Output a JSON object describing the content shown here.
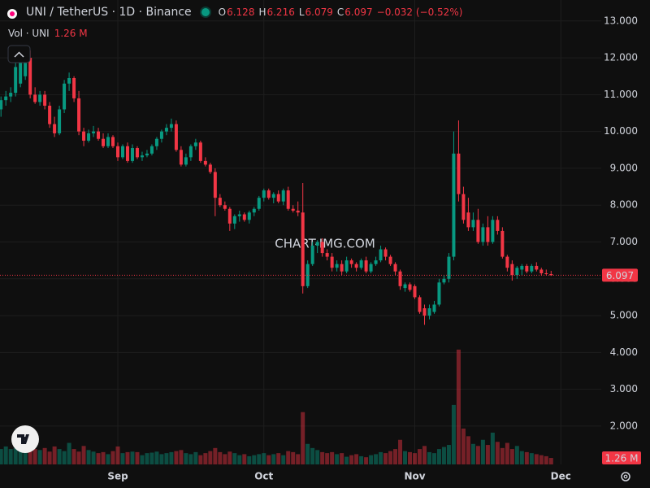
{
  "chart_data": {
    "type": "candlestick",
    "header": {
      "title": "UNI / TetherUS · 1D · Binance",
      "items": [
        {
          "key": "O",
          "value": "6.128"
        },
        {
          "key": "H",
          "value": "6.216"
        },
        {
          "key": "L",
          "value": "6.079"
        },
        {
          "key": "C",
          "value": "6.097"
        }
      ],
      "change": "−0.032 (−0.52%)"
    },
    "volume_legend": {
      "label": "Vol · UNI",
      "value": "1.26 M"
    },
    "watermark": "CHART-IMG.COM",
    "last_price_label": "6.097",
    "up_color": "#089981",
    "down_color": "#f23645",
    "xlim": [
      -0.2,
      123.3
    ],
    "xticks": [
      {
        "value": 24,
        "label": "Sep"
      },
      {
        "value": 54,
        "label": "Oct"
      },
      {
        "value": 85,
        "label": "Nov"
      },
      {
        "value": 115,
        "label": "Dec"
      }
    ],
    "ylim": [
      0.96,
      13.57
    ],
    "yticks": [
      {
        "value": 13,
        "label": "13.000"
      },
      {
        "value": 12,
        "label": "12.000"
      },
      {
        "value": 11,
        "label": "11.000"
      },
      {
        "value": 10,
        "label": "10.000"
      },
      {
        "value": 9,
        "label": "9.000"
      },
      {
        "value": 8,
        "label": "8.000"
      },
      {
        "value": 7,
        "label": "7.000"
      },
      {
        "value": 6,
        "label": "6.000"
      },
      {
        "value": 5,
        "label": "5.000"
      },
      {
        "value": 4,
        "label": "4.000"
      },
      {
        "value": 3,
        "label": "3.000"
      },
      {
        "value": 2,
        "label": "2.000"
      }
    ],
    "volume_ylim": [
      0,
      90.6
    ],
    "grid": true,
    "open": [
      10.6,
      10.85,
      10.95,
      11.05,
      11.3,
      11.5,
      12.0,
      11.0,
      10.8,
      11.0,
      10.7,
      10.2,
      9.95,
      10.6,
      11.3,
      11.45,
      10.9,
      10.0,
      9.75,
      9.95,
      10.0,
      9.8,
      9.6,
      9.85,
      9.6,
      9.3,
      9.6,
      9.2,
      9.55,
      9.3,
      9.35,
      9.4,
      9.6,
      9.8,
      10.0,
      10.1,
      10.2,
      9.5,
      9.1,
      9.3,
      9.6,
      9.7,
      9.2,
      9.1,
      8.9,
      8.2,
      8.0,
      7.9,
      7.5,
      7.7,
      7.75,
      7.6,
      7.8,
      7.9,
      8.2,
      8.4,
      8.2,
      8.3,
      8.1,
      8.4,
      7.9,
      7.85,
      7.8,
      5.8,
      6.4,
      6.9,
      7.0,
      6.7,
      6.6,
      6.3,
      6.4,
      6.2,
      6.5,
      6.4,
      6.3,
      6.5,
      6.2,
      6.4,
      6.5,
      6.8,
      6.6,
      6.4,
      6.2,
      5.75,
      5.85,
      5.8,
      5.5,
      5.2,
      5.0,
      5.1,
      5.3,
      5.9,
      6.0,
      6.6,
      9.4,
      8.3,
      7.8,
      7.4,
      7.6,
      7.0,
      7.4,
      7.0,
      7.6,
      7.3,
      6.6,
      6.4,
      6.1,
      6.25,
      6.35,
      6.2,
      6.35,
      6.25,
      6.15,
      6.128
    ],
    "high": [
      10.95,
      11.1,
      11.2,
      11.9,
      12.05,
      12.1,
      12.2,
      11.2,
      11.1,
      11.1,
      10.8,
      10.4,
      10.7,
      11.4,
      11.6,
      11.5,
      11.1,
      10.1,
      10.05,
      10.15,
      10.1,
      9.95,
      9.95,
      9.9,
      9.7,
      9.65,
      9.7,
      9.65,
      9.6,
      9.45,
      9.5,
      9.65,
      9.85,
      10.05,
      10.2,
      10.35,
      10.3,
      9.6,
      9.4,
      9.65,
      9.8,
      9.75,
      9.3,
      9.15,
      9.0,
      8.3,
      8.1,
      7.95,
      7.75,
      7.85,
      7.8,
      7.85,
      7.95,
      8.25,
      8.45,
      8.45,
      8.35,
      8.4,
      8.45,
      8.5,
      8.0,
      8.1,
      8.6,
      6.5,
      7.0,
      7.05,
      7.1,
      6.8,
      6.7,
      6.5,
      6.5,
      6.6,
      6.55,
      6.45,
      6.55,
      6.6,
      6.45,
      6.6,
      6.9,
      6.85,
      6.65,
      6.45,
      6.25,
      5.9,
      5.9,
      5.85,
      5.55,
      5.3,
      5.3,
      5.4,
      6.0,
      6.1,
      6.7,
      10.0,
      10.3,
      8.5,
      8.2,
      7.8,
      7.9,
      7.5,
      7.7,
      7.7,
      7.7,
      7.4,
      6.65,
      6.5,
      6.35,
      6.4,
      6.4,
      6.4,
      6.45,
      6.3,
      6.25,
      6.216
    ],
    "low": [
      10.4,
      10.7,
      10.8,
      10.95,
      11.2,
      11.4,
      10.9,
      10.75,
      10.7,
      10.6,
      10.1,
      9.85,
      9.9,
      10.5,
      11.1,
      10.8,
      9.9,
      9.6,
      9.7,
      9.85,
      9.75,
      9.55,
      9.55,
      9.55,
      9.2,
      9.25,
      9.15,
      9.15,
      9.25,
      9.2,
      9.3,
      9.35,
      9.5,
      9.7,
      9.9,
      10.0,
      9.45,
      9.05,
      9.05,
      9.2,
      9.5,
      9.15,
      9.05,
      8.85,
      7.7,
      7.95,
      7.85,
      7.3,
      7.35,
      7.55,
      7.55,
      7.5,
      7.7,
      7.85,
      8.1,
      8.15,
      8.05,
      8.05,
      8.0,
      7.85,
      7.8,
      7.7,
      5.6,
      5.75,
      6.35,
      6.7,
      6.6,
      6.5,
      6.2,
      6.2,
      6.1,
      6.15,
      6.3,
      6.2,
      6.25,
      6.15,
      6.15,
      6.35,
      6.45,
      6.5,
      6.35,
      6.1,
      5.7,
      5.65,
      5.65,
      5.45,
      5.05,
      4.75,
      4.9,
      5.05,
      5.25,
      5.85,
      5.9,
      6.5,
      8.1,
      7.5,
      7.3,
      7.3,
      6.95,
      6.9,
      6.9,
      6.95,
      7.2,
      6.55,
      6.2,
      5.95,
      6.0,
      6.1,
      6.15,
      6.15,
      6.2,
      6.1,
      6.1,
      6.079
    ],
    "close": [
      10.85,
      10.95,
      11.05,
      11.75,
      11.95,
      12.0,
      11.0,
      10.8,
      11.0,
      10.7,
      10.2,
      9.95,
      10.6,
      11.3,
      11.45,
      10.9,
      10.0,
      9.75,
      9.95,
      10.0,
      9.8,
      9.6,
      9.85,
      9.6,
      9.3,
      9.6,
      9.2,
      9.55,
      9.3,
      9.35,
      9.4,
      9.6,
      9.8,
      10.0,
      10.1,
      10.2,
      9.5,
      9.1,
      9.3,
      9.6,
      9.7,
      9.2,
      9.1,
      8.9,
      8.2,
      8.0,
      7.9,
      7.5,
      7.7,
      7.75,
      7.6,
      7.8,
      7.9,
      8.2,
      8.4,
      8.2,
      8.3,
      8.1,
      8.4,
      7.9,
      7.85,
      7.8,
      5.8,
      6.4,
      6.9,
      7.0,
      6.7,
      6.6,
      6.3,
      6.4,
      6.2,
      6.5,
      6.4,
      6.3,
      6.5,
      6.2,
      6.4,
      6.5,
      6.8,
      6.6,
      6.4,
      6.2,
      5.8,
      5.85,
      5.7,
      5.5,
      5.1,
      5.0,
      5.2,
      5.3,
      5.9,
      6.0,
      6.6,
      9.4,
      8.3,
      7.6,
      7.4,
      7.6,
      7.0,
      7.4,
      7.0,
      7.6,
      7.3,
      6.6,
      6.3,
      6.1,
      6.3,
      6.35,
      6.2,
      6.35,
      6.25,
      6.15,
      6.13,
      6.097
    ],
    "volume": [
      3,
      3.5,
      3,
      3.2,
      3.8,
      3.5,
      4,
      3,
      2.8,
      3.2,
      2.5,
      3.5,
      3,
      2.6,
      4.2,
      3,
      2.5,
      3.6,
      2.8,
      2.5,
      2.2,
      2.4,
      2,
      2.6,
      3.5,
      2.2,
      2.4,
      2.5,
      2.4,
      1.8,
      2.2,
      2.3,
      2.5,
      2,
      2.2,
      2.4,
      2.6,
      2.8,
      2.2,
      2,
      2.4,
      1.8,
      2.2,
      2.6,
      3.2,
      2.4,
      2,
      2.5,
      2.2,
      1.8,
      2,
      1.6,
      1.8,
      2,
      2.2,
      1.8,
      2,
      2.2,
      1.8,
      2.6,
      2.4,
      2,
      10.2,
      4,
      3.2,
      2.8,
      2.4,
      2.2,
      2.4,
      2,
      2.2,
      1.5,
      1.8,
      2,
      1.6,
      1.4,
      1.8,
      2,
      2.4,
      2.2,
      2.6,
      3,
      4.8,
      2.6,
      2.4,
      2.2,
      3,
      3.6,
      2.4,
      2.2,
      3,
      3.4,
      3.8,
      11.6,
      22.4,
      7,
      5.5,
      4,
      3.6,
      4.8,
      3.8,
      6.2,
      4.4,
      3.2,
      4.2,
      3,
      3.6,
      2.6,
      2.4,
      2.2,
      2,
      1.8,
      1.6,
      1.26
    ]
  }
}
